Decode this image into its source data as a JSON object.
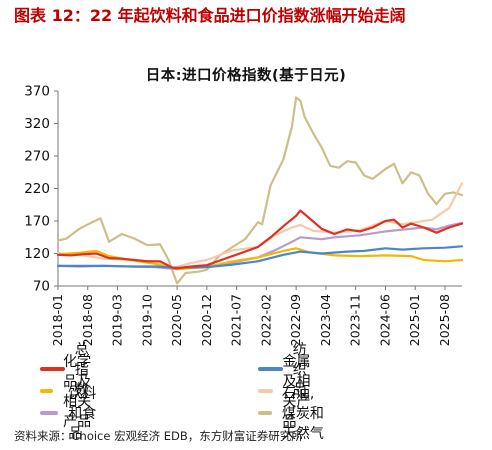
{
  "figure": {
    "title": "图表 12：22 年起饮料和食品进口价指数涨幅开始走阔",
    "source": "资料来源：Choice 宏观经济 EDB，东方财富证券研究所"
  },
  "chart_data": {
    "type": "line",
    "title": "日本:进口价格指数(基于日元)",
    "xlabel": "",
    "ylabel": "",
    "ylim": [
      70,
      370
    ],
    "yticks": [
      70,
      120,
      170,
      220,
      270,
      320,
      370
    ],
    "grid": false,
    "legend_position": "bottom",
    "x_range": [
      "2018-01",
      "2025-12"
    ],
    "xtick_labels": [
      "2018-01",
      "2018-08",
      "2019-03",
      "2019-10",
      "2020-05",
      "2020-12",
      "2021-07",
      "2022-02",
      "2022-09",
      "2023-04",
      "2023-11",
      "2024-06",
      "2025-01",
      "2025-08"
    ],
    "series": [
      {
        "name": "总指数",
        "color": "#e0301e",
        "points": [
          [
            "2018-01",
            118
          ],
          [
            "2018-04",
            117
          ],
          [
            "2018-07",
            119
          ],
          [
            "2018-10",
            120
          ],
          [
            "2019-01",
            113
          ],
          [
            "2019-04",
            112
          ],
          [
            "2019-07",
            110
          ],
          [
            "2019-10",
            108
          ],
          [
            "2020-01",
            108
          ],
          [
            "2020-04",
            98
          ],
          [
            "2020-05",
            97
          ],
          [
            "2020-07",
            99
          ],
          [
            "2020-10",
            101
          ],
          [
            "2020-12",
            102
          ],
          [
            "2021-03",
            109
          ],
          [
            "2021-06",
            116
          ],
          [
            "2021-09",
            123
          ],
          [
            "2021-12",
            130
          ],
          [
            "2022-03",
            145
          ],
          [
            "2022-06",
            162
          ],
          [
            "2022-09",
            178
          ],
          [
            "2022-10",
            186
          ],
          [
            "2022-12",
            175
          ],
          [
            "2023-03",
            158
          ],
          [
            "2023-06",
            150
          ],
          [
            "2023-09",
            157
          ],
          [
            "2023-12",
            154
          ],
          [
            "2024-03",
            160
          ],
          [
            "2024-06",
            170
          ],
          [
            "2024-08",
            172
          ],
          [
            "2024-10",
            160
          ],
          [
            "2024-12",
            166
          ],
          [
            "2025-03",
            160
          ],
          [
            "2025-06",
            152
          ],
          [
            "2025-09",
            160
          ],
          [
            "2025-12",
            166
          ]
        ]
      },
      {
        "name": "纺织品",
        "color": "#4a86c8",
        "points": [
          [
            "2018-01",
            101
          ],
          [
            "2018-06",
            101
          ],
          [
            "2018-12",
            101
          ],
          [
            "2019-06",
            100
          ],
          [
            "2019-12",
            100
          ],
          [
            "2020-05",
            98
          ],
          [
            "2020-12",
            99
          ],
          [
            "2021-06",
            103
          ],
          [
            "2021-12",
            108
          ],
          [
            "2022-06",
            118
          ],
          [
            "2022-10",
            123
          ],
          [
            "2023-03",
            120
          ],
          [
            "2023-09",
            123
          ],
          [
            "2024-01",
            124
          ],
          [
            "2024-06",
            128
          ],
          [
            "2024-10",
            126
          ],
          [
            "2025-03",
            128
          ],
          [
            "2025-08",
            129
          ],
          [
            "2025-12",
            131
          ]
        ]
      },
      {
        "name": "化学品及相关产品",
        "color": "#f5b800",
        "points": [
          [
            "2018-01",
            119
          ],
          [
            "2018-06",
            121
          ],
          [
            "2018-10",
            124
          ],
          [
            "2019-01",
            116
          ],
          [
            "2019-06",
            110
          ],
          [
            "2019-12",
            104
          ],
          [
            "2020-05",
            96
          ],
          [
            "2020-12",
            99
          ],
          [
            "2021-06",
            108
          ],
          [
            "2021-12",
            114
          ],
          [
            "2022-06",
            124
          ],
          [
            "2022-09",
            128
          ],
          [
            "2022-12",
            122
          ],
          [
            "2023-06",
            117
          ],
          [
            "2023-12",
            116
          ],
          [
            "2024-06",
            117
          ],
          [
            "2024-12",
            116
          ],
          [
            "2025-03",
            110
          ],
          [
            "2025-08",
            108
          ],
          [
            "2025-12",
            110
          ]
        ]
      },
      {
        "name": "金属及相关产品",
        "color": "#f8c9a8",
        "points": [
          [
            "2018-01",
            120
          ],
          [
            "2018-06",
            118
          ],
          [
            "2018-12",
            112
          ],
          [
            "2019-06",
            110
          ],
          [
            "2019-12",
            108
          ],
          [
            "2020-04",
            98
          ],
          [
            "2020-08",
            105
          ],
          [
            "2020-12",
            110
          ],
          [
            "2021-06",
            125
          ],
          [
            "2021-12",
            130
          ],
          [
            "2022-04",
            148
          ],
          [
            "2022-08",
            160
          ],
          [
            "2022-10",
            164
          ],
          [
            "2023-01",
            155
          ],
          [
            "2023-06",
            152
          ],
          [
            "2023-12",
            156
          ],
          [
            "2024-06",
            170
          ],
          [
            "2024-10",
            165
          ],
          [
            "2025-01",
            168
          ],
          [
            "2025-05",
            172
          ],
          [
            "2025-09",
            190
          ],
          [
            "2025-12",
            228
          ]
        ]
      },
      {
        "name": "饮料和食品",
        "color": "#b69ad2",
        "points": [
          [
            "2018-01",
            101
          ],
          [
            "2018-06",
            100
          ],
          [
            "2018-12",
            101
          ],
          [
            "2019-06",
            100
          ],
          [
            "2019-12",
            99
          ],
          [
            "2020-05",
            96
          ],
          [
            "2020-12",
            100
          ],
          [
            "2021-06",
            106
          ],
          [
            "2021-12",
            114
          ],
          [
            "2022-04",
            125
          ],
          [
            "2022-08",
            138
          ],
          [
            "2022-10",
            145
          ],
          [
            "2023-03",
            142
          ],
          [
            "2023-06",
            145
          ],
          [
            "2023-12",
            148
          ],
          [
            "2024-06",
            154
          ],
          [
            "2024-12",
            158
          ],
          [
            "2025-03",
            160
          ],
          [
            "2025-06",
            157
          ],
          [
            "2025-09",
            163
          ],
          [
            "2025-12",
            167
          ]
        ]
      },
      {
        "name": "石油,煤炭和天然气",
        "color": "#c9c08a",
        "points": [
          [
            "2018-01",
            140
          ],
          [
            "2018-03",
            143
          ],
          [
            "2018-06",
            158
          ],
          [
            "2018-09",
            168
          ],
          [
            "2018-11",
            174
          ],
          [
            "2019-01",
            138
          ],
          [
            "2019-04",
            150
          ],
          [
            "2019-07",
            143
          ],
          [
            "2019-10",
            133
          ],
          [
            "2020-01",
            134
          ],
          [
            "2020-03",
            110
          ],
          [
            "2020-05",
            74
          ],
          [
            "2020-07",
            90
          ],
          [
            "2020-10",
            92
          ],
          [
            "2020-12",
            95
          ],
          [
            "2021-03",
            117
          ],
          [
            "2021-06",
            130
          ],
          [
            "2021-09",
            142
          ],
          [
            "2021-12",
            168
          ],
          [
            "2022-01",
            165
          ],
          [
            "2022-03",
            225
          ],
          [
            "2022-06",
            265
          ],
          [
            "2022-08",
            315
          ],
          [
            "2022-09",
            360
          ],
          [
            "2022-10",
            355
          ],
          [
            "2022-11",
            330
          ],
          [
            "2023-01",
            305
          ],
          [
            "2023-03",
            283
          ],
          [
            "2023-05",
            255
          ],
          [
            "2023-07",
            252
          ],
          [
            "2023-09",
            262
          ],
          [
            "2023-11",
            260
          ],
          [
            "2024-01",
            240
          ],
          [
            "2024-03",
            235
          ],
          [
            "2024-06",
            250
          ],
          [
            "2024-08",
            258
          ],
          [
            "2024-10",
            228
          ],
          [
            "2024-12",
            245
          ],
          [
            "2025-02",
            240
          ],
          [
            "2025-04",
            212
          ],
          [
            "2025-06",
            196
          ],
          [
            "2025-08",
            212
          ],
          [
            "2025-10",
            214
          ],
          [
            "2025-12",
            210
          ]
        ]
      }
    ]
  }
}
